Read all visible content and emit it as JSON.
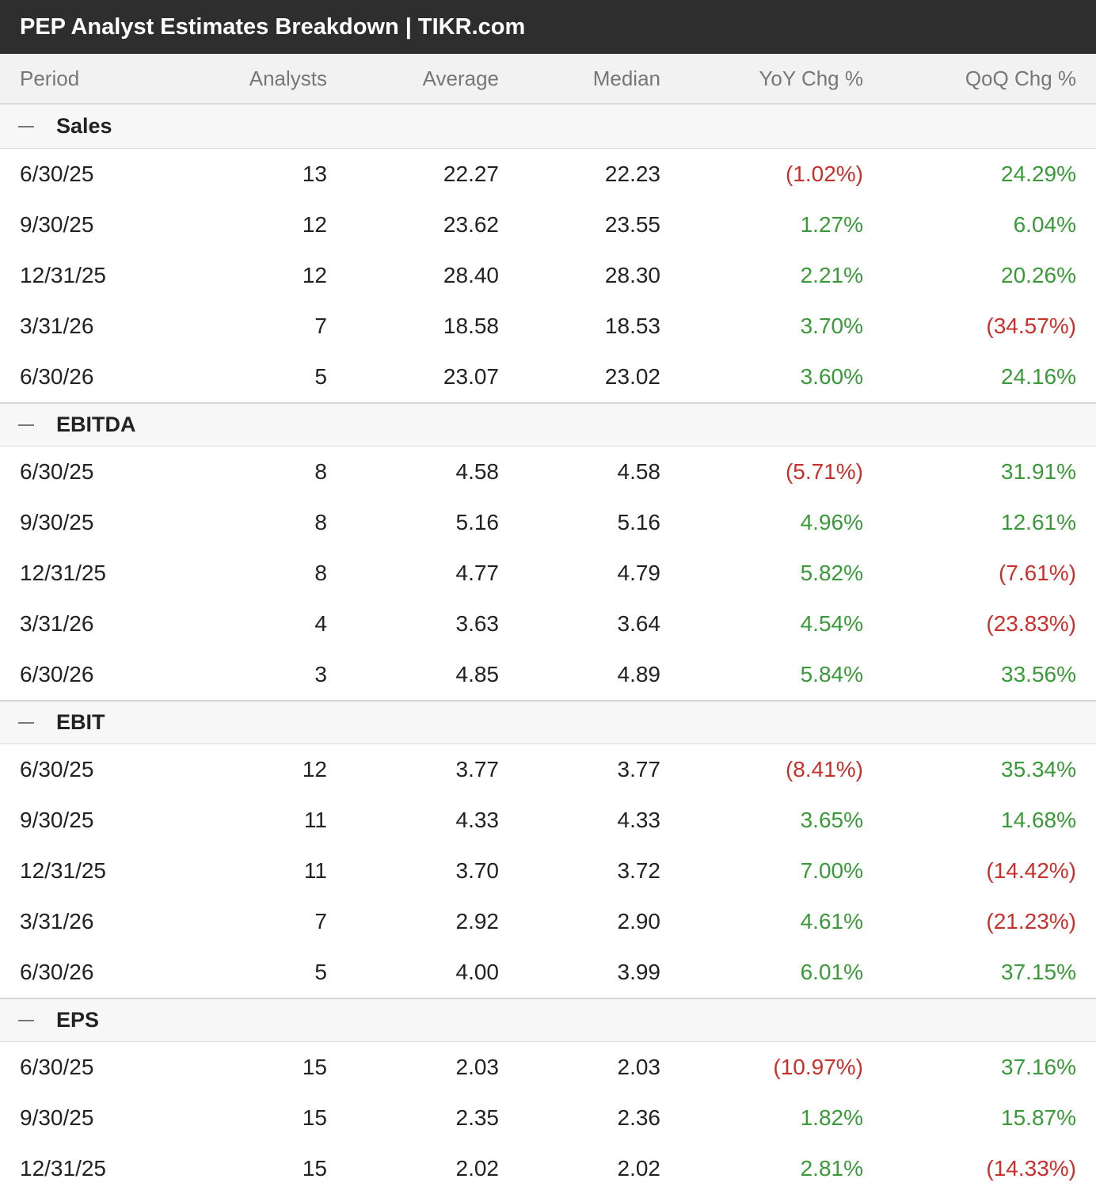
{
  "title": "PEP Analyst Estimates Breakdown | TIKR.com",
  "columns": [
    "Period",
    "Analysts",
    "Average",
    "Median",
    "YoY Chg %",
    "QoQ Chg %"
  ],
  "colors": {
    "negative": "#c9302c",
    "positive": "#3a9a3a",
    "title_bg": "#2e2e2e"
  },
  "groups": [
    {
      "label": "Sales",
      "rows": [
        [
          "6/30/25",
          "13",
          "22.27",
          "22.23",
          "(1.02%)",
          "24.29%"
        ],
        [
          "9/30/25",
          "12",
          "23.62",
          "23.55",
          "1.27%",
          "6.04%"
        ],
        [
          "12/31/25",
          "12",
          "28.40",
          "28.30",
          "2.21%",
          "20.26%"
        ],
        [
          "3/31/26",
          "7",
          "18.58",
          "18.53",
          "3.70%",
          "(34.57%)"
        ],
        [
          "6/30/26",
          "5",
          "23.07",
          "23.02",
          "3.60%",
          "24.16%"
        ]
      ]
    },
    {
      "label": "EBITDA",
      "rows": [
        [
          "6/30/25",
          "8",
          "4.58",
          "4.58",
          "(5.71%)",
          "31.91%"
        ],
        [
          "9/30/25",
          "8",
          "5.16",
          "5.16",
          "4.96%",
          "12.61%"
        ],
        [
          "12/31/25",
          "8",
          "4.77",
          "4.79",
          "5.82%",
          "(7.61%)"
        ],
        [
          "3/31/26",
          "4",
          "3.63",
          "3.64",
          "4.54%",
          "(23.83%)"
        ],
        [
          "6/30/26",
          "3",
          "4.85",
          "4.89",
          "5.84%",
          "33.56%"
        ]
      ]
    },
    {
      "label": "EBIT",
      "rows": [
        [
          "6/30/25",
          "12",
          "3.77",
          "3.77",
          "(8.41%)",
          "35.34%"
        ],
        [
          "9/30/25",
          "11",
          "4.33",
          "4.33",
          "3.65%",
          "14.68%"
        ],
        [
          "12/31/25",
          "11",
          "3.70",
          "3.72",
          "7.00%",
          "(14.42%)"
        ],
        [
          "3/31/26",
          "7",
          "2.92",
          "2.90",
          "4.61%",
          "(21.23%)"
        ],
        [
          "6/30/26",
          "5",
          "4.00",
          "3.99",
          "6.01%",
          "37.15%"
        ]
      ]
    },
    {
      "label": "EPS",
      "rows": [
        [
          "6/30/25",
          "15",
          "2.03",
          "2.03",
          "(10.97%)",
          "37.16%"
        ],
        [
          "9/30/25",
          "15",
          "2.35",
          "2.36",
          "1.82%",
          "15.87%"
        ],
        [
          "12/31/25",
          "15",
          "2.02",
          "2.02",
          "2.81%",
          "(14.33%)"
        ]
      ]
    }
  ]
}
